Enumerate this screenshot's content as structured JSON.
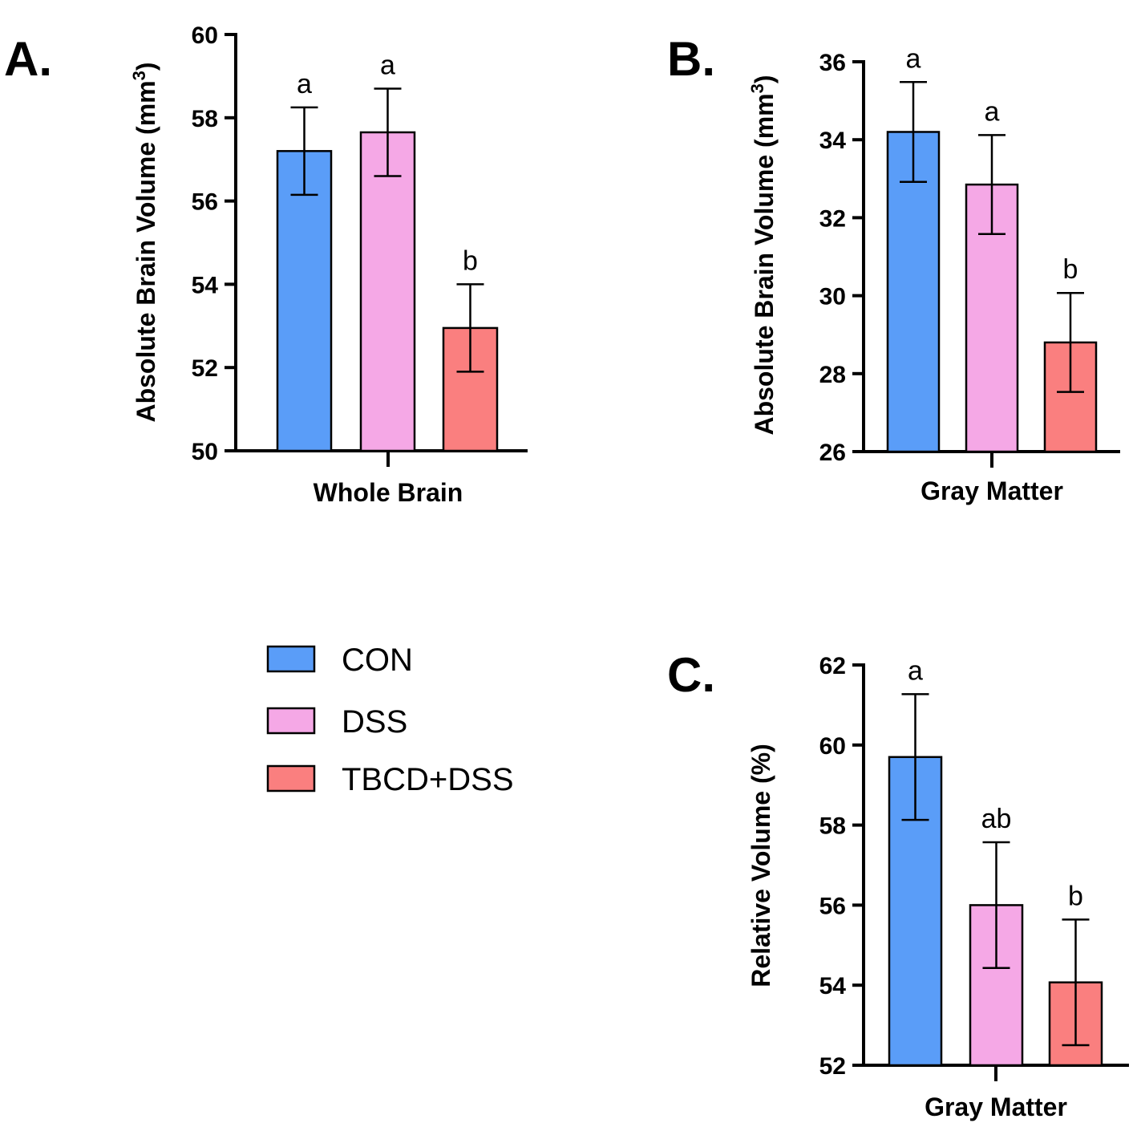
{
  "groups": [
    {
      "name": "CON",
      "color": "#5A9DF8"
    },
    {
      "name": "DSS",
      "color": "#F5A8E6"
    },
    {
      "name": "TBCD+DSS",
      "color": "#FA7F7F"
    }
  ],
  "chart_data": [
    {
      "type": "bar",
      "panel": "A.",
      "title": "",
      "xlabel": "Whole Brain",
      "ylabel": "Absolute Brain Volume (mm3)",
      "ylabel_main": "Absolute Brain Volume (mm",
      "ylabel_sup": "3",
      "ylabel_close": ")",
      "categories": [
        "CON",
        "DSS",
        "TBCD+DSS"
      ],
      "values": [
        57.2,
        57.65,
        52.95
      ],
      "errors": [
        1.05,
        1.05,
        1.05
      ],
      "significance": [
        "a",
        "a",
        "b"
      ],
      "ylim": [
        50,
        60
      ],
      "yticks": [
        50,
        52,
        54,
        56,
        58,
        60
      ]
    },
    {
      "type": "bar",
      "panel": "B.",
      "title": "",
      "xlabel": "Gray Matter",
      "ylabel": "Absolute Brain Volume (mm3)",
      "ylabel_main": "Absolute Brain Volume (mm",
      "ylabel_sup": "3",
      "ylabel_close": ")",
      "categories": [
        "CON",
        "DSS",
        "TBCD+DSS"
      ],
      "values": [
        34.2,
        32.85,
        28.8
      ],
      "errors": [
        1.28,
        1.27,
        1.27
      ],
      "significance": [
        "a",
        "a",
        "b"
      ],
      "ylim": [
        26,
        36
      ],
      "yticks": [
        26,
        28,
        30,
        32,
        34,
        36
      ]
    },
    {
      "type": "bar",
      "panel": "C.",
      "title": "",
      "xlabel": "Gray Matter",
      "ylabel": "Relative Volume (%)",
      "ylabel_main": "Relative Volume (%)",
      "ylabel_sup": "",
      "ylabel_close": "",
      "categories": [
        "CON",
        "DSS",
        "TBCD+DSS"
      ],
      "values": [
        59.7,
        56.0,
        54.07
      ],
      "errors": [
        1.57,
        1.57,
        1.57
      ],
      "significance": [
        "a",
        "ab",
        "b"
      ],
      "ylim": [
        52,
        62
      ],
      "yticks": [
        52,
        54,
        56,
        58,
        60,
        62
      ]
    }
  ]
}
